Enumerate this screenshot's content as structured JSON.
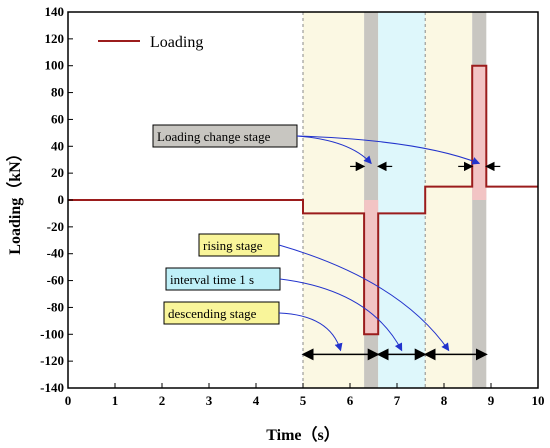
{
  "chart_data": {
    "type": "line",
    "xlabel": "Time（s）",
    "ylabel": "Loading（kN）",
    "xlim": [
      0,
      10
    ],
    "ylim": [
      -140,
      140
    ],
    "xticks": [
      0,
      1,
      2,
      3,
      4,
      5,
      6,
      7,
      8,
      9,
      10
    ],
    "yticks": [
      140,
      120,
      100,
      80,
      60,
      40,
      20,
      0,
      -20,
      -40,
      -60,
      -80,
      -100,
      -120,
      -140
    ],
    "grid": false,
    "legend_position": "top-left",
    "series": [
      {
        "name": "Loading",
        "color": "#9b1c1c",
        "fill_color": "#f2c4c4",
        "x": [
          0,
          5,
          5,
          6.3,
          6.3,
          6.6,
          6.6,
          7.6,
          7.6,
          8.6,
          8.6,
          8.9,
          8.9,
          10
        ],
        "y": [
          0,
          0,
          -10,
          -10,
          -100,
          -100,
          -10,
          -10,
          10,
          10,
          100,
          100,
          10,
          10
        ]
      }
    ],
    "bands": [
      {
        "x": [
          5,
          6.3
        ],
        "color": "#fbf8e3"
      },
      {
        "x": [
          6.3,
          6.6
        ],
        "color": "#c8c6c1"
      },
      {
        "x": [
          6.6,
          7.6
        ],
        "color": "#def7fb"
      },
      {
        "x": [
          7.6,
          8.6
        ],
        "color": "#fbf8e3"
      },
      {
        "x": [
          8.6,
          8.9
        ],
        "color": "#c8c6c1"
      }
    ],
    "dashed_lines_x": [
      5,
      7.6
    ],
    "annotations": [
      {
        "text": "Loading change stage",
        "box_color": "#c8c6c1"
      },
      {
        "text": "rising stage",
        "box_color": "#f9f59a"
      },
      {
        "text": "interval time 1 s",
        "box_color": "#bff0f8"
      },
      {
        "text": "descending stage",
        "box_color": "#f9f59a"
      }
    ]
  }
}
